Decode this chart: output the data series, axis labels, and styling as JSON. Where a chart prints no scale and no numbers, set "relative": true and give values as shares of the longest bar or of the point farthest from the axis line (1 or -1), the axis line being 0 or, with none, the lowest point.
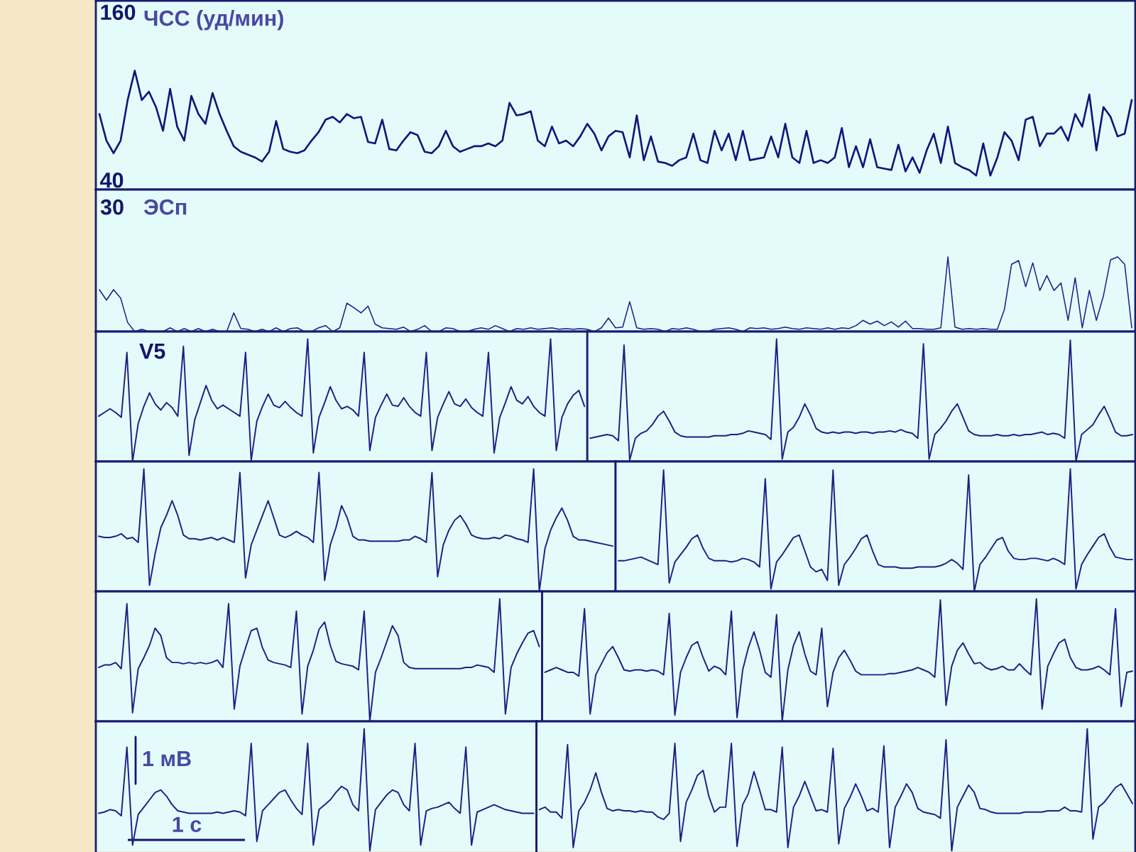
{
  "chart_data": [
    {
      "type": "line",
      "title": "ЧСС (уд/мин)",
      "ylim": [
        33,
        168
      ],
      "yticks": [
        40,
        160
      ],
      "tick_labels": "y",
      "categories": [
        null,
        null,
        null,
        null,
        null,
        null,
        null,
        null,
        null,
        null,
        null,
        null,
        null,
        null,
        null,
        null,
        null,
        null,
        null,
        null,
        null,
        null,
        null,
        null,
        null,
        null,
        null,
        null,
        null,
        null,
        null,
        null,
        null,
        null,
        null,
        null,
        null,
        null,
        null,
        null,
        null,
        null,
        null,
        null,
        null,
        null,
        null,
        null,
        null,
        null,
        null,
        null,
        null,
        null,
        null,
        null,
        null,
        null,
        null,
        null,
        null,
        null,
        null,
        null,
        null,
        null,
        null,
        null,
        null,
        null,
        null,
        null,
        null,
        null,
        null,
        null,
        null,
        null,
        null,
        null,
        null,
        null,
        null,
        null,
        null,
        null,
        null,
        null,
        null,
        null,
        null,
        null,
        null,
        null,
        null,
        null,
        null,
        null,
        null,
        null,
        null,
        null,
        null,
        null,
        null,
        null,
        null,
        null,
        null,
        null,
        null,
        null,
        null,
        null,
        null,
        null,
        null,
        null,
        null,
        null,
        null,
        null,
        null,
        null,
        null,
        null,
        null,
        null,
        null,
        null,
        null,
        null,
        null,
        null,
        null,
        null,
        null,
        null,
        null,
        null,
        null,
        null,
        null,
        null,
        null,
        null,
        null
      ],
      "series": [
        {
          "color": "#14147a",
          "values": [
            87,
            68,
            59,
            68,
            97,
            118,
            97,
            103,
            92,
            75,
            105,
            78,
            68,
            100,
            87,
            80,
            102,
            87,
            75,
            64,
            60,
            58,
            56,
            53,
            60,
            82,
            62,
            60,
            59,
            61,
            68,
            74,
            83,
            85,
            81,
            87,
            84,
            85,
            67,
            66,
            83,
            62,
            61,
            68,
            74,
            72,
            60,
            59,
            64,
            75,
            64,
            60,
            62,
            64,
            64,
            66,
            64,
            68,
            95,
            86,
            87,
            89,
            68,
            64,
            78,
            66,
            68,
            64,
            71,
            80,
            73,
            61,
            71,
            75,
            74,
            56,
            86,
            54,
            71,
            53,
            52,
            50,
            54,
            56,
            73,
            54,
            52,
            75,
            61,
            73,
            54,
            75,
            54,
            55,
            56,
            71,
            56,
            80,
            56,
            52,
            75,
            52,
            54,
            52,
            56,
            77,
            49,
            64,
            49,
            69,
            49,
            48,
            47,
            65,
            46,
            56,
            45,
            61,
            73,
            52,
            78,
            52,
            49,
            47,
            43,
            66,
            43,
            56,
            74,
            68,
            54,
            83,
            85,
            64,
            73,
            73,
            78,
            68,
            87,
            78,
            101,
            61,
            92,
            85,
            71,
            73,
            97
          ]
        }
      ]
    },
    {
      "type": "line",
      "title": "ЭСп",
      "annotations": [
        "30"
      ],
      "relative": true,
      "tick_labels": false,
      "categories": [
        null,
        null,
        null,
        null,
        null,
        null,
        null,
        null,
        null,
        null,
        null,
        null,
        null,
        null,
        null,
        null,
        null,
        null,
        null,
        null,
        null,
        null,
        null,
        null,
        null,
        null,
        null,
        null,
        null,
        null,
        null,
        null,
        null,
        null,
        null,
        null,
        null,
        null,
        null,
        null,
        null,
        null,
        null,
        null,
        null,
        null,
        null,
        null,
        null,
        null,
        null,
        null,
        null,
        null,
        null,
        null,
        null,
        null,
        null,
        null,
        null,
        null,
        null,
        null,
        null,
        null,
        null,
        null,
        null,
        null,
        null,
        null,
        null,
        null,
        null,
        null,
        null,
        null,
        null,
        null,
        null,
        null,
        null,
        null,
        null,
        null,
        null,
        null,
        null,
        null,
        null,
        null,
        null,
        null,
        null,
        null,
        null,
        null,
        null,
        null,
        null,
        null,
        null,
        null,
        null,
        null,
        null,
        null,
        null,
        null,
        null,
        null,
        null,
        null,
        null,
        null,
        null,
        null,
        null,
        null,
        null,
        null,
        null,
        null,
        null,
        null,
        null,
        null,
        null,
        null,
        null,
        null,
        null,
        null,
        null,
        null,
        null,
        null,
        null,
        null,
        null,
        null,
        null,
        null,
        null,
        null,
        null
      ],
      "series": [
        {
          "color": "#1e1e86",
          "values": [
            0.56,
            0.42,
            0.56,
            0.45,
            0.12,
            0,
            0.03,
            0,
            0,
            0,
            0.05,
            0,
            0.04,
            0,
            0.04,
            0,
            0.03,
            0,
            0,
            0.25,
            0.04,
            0.03,
            0,
            0.03,
            0,
            0.05,
            0,
            0.04,
            0.05,
            0,
            0,
            0.05,
            0.08,
            0,
            0.05,
            0.38,
            0.32,
            0.25,
            0.34,
            0.1,
            0.05,
            0.04,
            0.03,
            0.06,
            0,
            0.03,
            0.08,
            0,
            0,
            0.05,
            0.04,
            0,
            0,
            0.03,
            0.05,
            0.03,
            0.08,
            0.04,
            0,
            0.04,
            0.03,
            0.05,
            0.03,
            0.04,
            0.05,
            0.03,
            0.04,
            0.03,
            0.04,
            0.03,
            0,
            0.05,
            0.18,
            0.05,
            0.06,
            0.4,
            0.05,
            0.03,
            0.04,
            0.03,
            0,
            0.04,
            0.03,
            0.05,
            0.03,
            0,
            0,
            0.03,
            0.04,
            0.05,
            0.03,
            0,
            0.05,
            0.04,
            0.05,
            0.03,
            0.04,
            0.06,
            0.04,
            0.03,
            0.05,
            0.04,
            0.03,
            0.05,
            0.03,
            0.05,
            0.04,
            0.08,
            0.15,
            0.1,
            0.14,
            0.08,
            0.13,
            0.06,
            0.14,
            0.04,
            0.04,
            0.03,
            0.03,
            0.05,
            1.0,
            0.06,
            0.03,
            0.04,
            0.03,
            0.04,
            0.03,
            0.03,
            0.3,
            0.9,
            0.95,
            0.6,
            0.92,
            0.55,
            0.75,
            0.55,
            0.65,
            0.15,
            0.72,
            0.05,
            0.55,
            0.15,
            0.48,
            0.96,
            1.0,
            0.9,
            0.05
          ]
        }
      ]
    },
    {
      "type": "line",
      "title": "V5",
      "relative": true,
      "tick_labels": false,
      "categories": [
        null,
        null,
        null,
        null,
        null,
        null,
        null,
        null,
        null,
        null,
        null,
        null,
        null,
        null,
        null,
        null,
        null,
        null,
        null,
        null,
        null,
        null,
        null,
        null,
        null,
        null,
        null,
        null,
        null,
        null,
        null,
        null,
        null,
        null,
        null,
        null,
        null,
        null,
        null,
        null,
        null,
        null,
        null,
        null,
        null,
        null,
        null,
        null,
        null,
        null,
        null,
        null,
        null,
        null,
        null,
        null,
        null,
        null,
        null,
        null,
        null,
        null,
        null,
        null,
        null,
        null,
        null,
        null,
        null,
        null,
        null,
        null,
        null,
        null,
        null,
        null,
        null,
        null,
        null,
        null,
        null,
        null,
        null,
        null,
        null,
        null,
        null
      ],
      "series": [
        {
          "color": "#1e1e86",
          "values": [
            0.37,
            0.4,
            0.43,
            0.4,
            0.36,
            0.89,
            0.0,
            0.31,
            0.45,
            0.56,
            0.47,
            0.42,
            0.48,
            0.44,
            0.37,
            0.94,
            0.05,
            0.34,
            0.48,
            0.62,
            0.5,
            0.43,
            0.46,
            0.43,
            0.4,
            0.37,
            0.89,
            0.01,
            0.33,
            0.45,
            0.55,
            0.46,
            0.44,
            0.49,
            0.44,
            0.4,
            0.37,
            1.0,
            0.07,
            0.36,
            0.48,
            0.61,
            0.5,
            0.43,
            0.45,
            0.42,
            0.37,
            0.89,
            0.09,
            0.36,
            0.46,
            0.55,
            0.46,
            0.45,
            0.52,
            0.45,
            0.4,
            0.37,
            0.89,
            0.09,
            0.36,
            0.47,
            0.57,
            0.47,
            0.45,
            0.51,
            0.44,
            0.4,
            0.37,
            0.89,
            0.07,
            0.36,
            0.48,
            0.61,
            0.5,
            0.47,
            0.53,
            0.45,
            0.4,
            0.37,
            1.0,
            0.09,
            0.36,
            0.47,
            0.54,
            0.58,
            0.45
          ]
        }
      ]
    },
    {
      "type": "line",
      "relative": true,
      "tick_labels": false,
      "categories": [
        null,
        null,
        null,
        null,
        null,
        null,
        null,
        null,
        null,
        null,
        null,
        null,
        null,
        null,
        null,
        null,
        null,
        null,
        null,
        null,
        null,
        null,
        null,
        null,
        null,
        null,
        null,
        null,
        null,
        null,
        null,
        null,
        null,
        null,
        null,
        null,
        null,
        null,
        null,
        null,
        null,
        null,
        null,
        null,
        null,
        null,
        null,
        null,
        null,
        null,
        null,
        null,
        null,
        null,
        null,
        null,
        null,
        null,
        null,
        null,
        null,
        null,
        null,
        null,
        null,
        null,
        null,
        null,
        null,
        null,
        null,
        null,
        null,
        null,
        null,
        null,
        null,
        null,
        null,
        null,
        null,
        null,
        null,
        null,
        null,
        null,
        null,
        null,
        null,
        null,
        null,
        null,
        null,
        null,
        null,
        null,
        null
      ],
      "series": [
        {
          "color": "#1e1e86",
          "values": [
            0.19,
            0.2,
            0.21,
            0.22,
            0.21,
            0.17,
            0.95,
            0.01,
            0.19,
            0.23,
            0.25,
            0.3,
            0.37,
            0.41,
            0.33,
            0.24,
            0.21,
            0.2,
            0.2,
            0.2,
            0.2,
            0.2,
            0.21,
            0.21,
            0.21,
            0.22,
            0.22,
            0.23,
            0.25,
            0.24,
            0.23,
            0.22,
            0.18,
            1.0,
            0.02,
            0.24,
            0.28,
            0.36,
            0.47,
            0.38,
            0.27,
            0.24,
            0.23,
            0.24,
            0.23,
            0.24,
            0.24,
            0.23,
            0.24,
            0.24,
            0.23,
            0.24,
            0.24,
            0.25,
            0.24,
            0.26,
            0.24,
            0.23,
            0.19,
            0.96,
            0.02,
            0.22,
            0.27,
            0.33,
            0.41,
            0.47,
            0.36,
            0.25,
            0.22,
            0.21,
            0.21,
            0.21,
            0.22,
            0.21,
            0.21,
            0.22,
            0.21,
            0.22,
            0.22,
            0.23,
            0.24,
            0.22,
            0.23,
            0.22,
            0.19,
            0.99,
            0.0,
            0.22,
            0.26,
            0.3,
            0.38,
            0.45,
            0.35,
            0.24,
            0.21,
            0.21,
            0.22
          ]
        }
      ]
    },
    {
      "type": "line",
      "relative": true,
      "tick_labels": false,
      "categories": [
        null,
        null,
        null,
        null,
        null,
        null,
        null,
        null,
        null,
        null,
        null,
        null,
        null,
        null,
        null,
        null,
        null,
        null,
        null,
        null,
        null,
        null,
        null,
        null,
        null,
        null,
        null,
        null,
        null,
        null,
        null,
        null,
        null,
        null,
        null,
        null,
        null,
        null,
        null,
        null,
        null,
        null,
        null,
        null,
        null,
        null,
        null,
        null,
        null,
        null,
        null,
        null,
        null,
        null,
        null,
        null,
        null,
        null,
        null,
        null,
        null,
        null,
        null,
        null,
        null,
        null,
        null,
        null,
        null,
        null,
        null,
        null,
        null,
        null,
        null,
        null,
        null,
        null,
        null,
        null,
        null,
        null,
        null,
        null,
        null,
        null,
        null,
        null,
        null,
        null,
        null,
        null
      ],
      "series": [
        {
          "color": "#1e1e86",
          "values": [
            0.45,
            0.44,
            0.44,
            0.45,
            0.47,
            0.43,
            0.44,
            0.4,
            1.0,
            0.05,
            0.31,
            0.52,
            0.62,
            0.74,
            0.62,
            0.46,
            0.43,
            0.43,
            0.42,
            0.43,
            0.44,
            0.42,
            0.44,
            0.42,
            0.4,
            0.97,
            0.11,
            0.38,
            0.5,
            0.62,
            0.74,
            0.6,
            0.46,
            0.44,
            0.46,
            0.49,
            0.46,
            0.44,
            0.4,
            0.97,
            0.09,
            0.38,
            0.52,
            0.7,
            0.6,
            0.45,
            0.42,
            0.42,
            0.41,
            0.41,
            0.41,
            0.41,
            0.41,
            0.41,
            0.42,
            0.42,
            0.45,
            0.43,
            0.4,
            0.97,
            0.12,
            0.38,
            0.5,
            0.58,
            0.62,
            0.55,
            0.46,
            0.44,
            0.43,
            0.43,
            0.44,
            0.43,
            0.46,
            0.45,
            0.43,
            0.42,
            0.4,
            1.0,
            0.0,
            0.35,
            0.5,
            0.6,
            0.68,
            0.58,
            0.45,
            0.42,
            0.42,
            0.41,
            0.4,
            0.39,
            0.38,
            0.37
          ]
        }
      ]
    },
    {
      "type": "line",
      "relative": true,
      "tick_labels": false,
      "categories": [
        null,
        null,
        null,
        null,
        null,
        null,
        null,
        null,
        null,
        null,
        null,
        null,
        null,
        null,
        null,
        null,
        null,
        null,
        null,
        null,
        null,
        null,
        null,
        null,
        null,
        null,
        null,
        null,
        null,
        null,
        null,
        null,
        null,
        null,
        null,
        null,
        null,
        null,
        null,
        null,
        null,
        null,
        null,
        null,
        null,
        null,
        null,
        null,
        null,
        null,
        null,
        null,
        null,
        null,
        null,
        null,
        null,
        null,
        null,
        null,
        null,
        null,
        null,
        null,
        null,
        null,
        null,
        null,
        null,
        null,
        null,
        null,
        null,
        null,
        null,
        null,
        null,
        null,
        null,
        null,
        null,
        null,
        null,
        null,
        null,
        null,
        null,
        null,
        null,
        null,
        null,
        null
      ],
      "series": [
        {
          "color": "#1e1e86",
          "values": [
            0.25,
            0.25,
            0.26,
            0.27,
            0.28,
            0.26,
            0.24,
            0.22,
            0.99,
            0.07,
            0.24,
            0.3,
            0.36,
            0.43,
            0.46,
            0.35,
            0.27,
            0.25,
            0.25,
            0.25,
            0.24,
            0.25,
            0.27,
            0.26,
            0.24,
            0.2,
            0.92,
            0.02,
            0.24,
            0.3,
            0.37,
            0.44,
            0.46,
            0.33,
            0.2,
            0.16,
            0.18,
            0.09,
            0.99,
            0.05,
            0.22,
            0.28,
            0.35,
            0.43,
            0.46,
            0.33,
            0.22,
            0.2,
            0.2,
            0.2,
            0.19,
            0.19,
            0.19,
            0.2,
            0.2,
            0.2,
            0.2,
            0.21,
            0.23,
            0.26,
            0.23,
            0.18,
            0.95,
            0.0,
            0.22,
            0.28,
            0.35,
            0.42,
            0.44,
            0.33,
            0.27,
            0.26,
            0.26,
            0.27,
            0.27,
            0.26,
            0.25,
            0.27,
            0.25,
            0.22,
            1.0,
            0.02,
            0.22,
            0.3,
            0.37,
            0.44,
            0.47,
            0.36,
            0.28,
            0.27,
            0.26,
            0.26
          ]
        }
      ]
    },
    {
      "type": "line",
      "relative": true,
      "tick_labels": false,
      "categories": [
        null,
        null,
        null,
        null,
        null,
        null,
        null,
        null,
        null,
        null,
        null,
        null,
        null,
        null,
        null,
        null,
        null,
        null,
        null,
        null,
        null,
        null,
        null,
        null,
        null,
        null,
        null,
        null,
        null,
        null,
        null,
        null,
        null,
        null,
        null,
        null,
        null,
        null,
        null,
        null,
        null,
        null,
        null,
        null,
        null,
        null,
        null,
        null,
        null,
        null,
        null,
        null,
        null,
        null,
        null,
        null,
        null,
        null,
        null,
        null,
        null,
        null,
        null,
        null,
        null,
        null,
        null,
        null,
        null,
        null,
        null,
        null,
        null,
        null,
        null,
        null,
        null,
        null,
        null
      ],
      "series": [
        {
          "color": "#1e1e86",
          "values": [
            0.44,
            0.46,
            0.46,
            0.48,
            0.43,
            0.96,
            0.07,
            0.43,
            0.52,
            0.62,
            0.76,
            0.7,
            0.52,
            0.48,
            0.48,
            0.47,
            0.48,
            0.47,
            0.48,
            0.47,
            0.48,
            0.5,
            0.44,
            0.96,
            0.1,
            0.45,
            0.6,
            0.74,
            0.76,
            0.6,
            0.5,
            0.48,
            0.47,
            0.46,
            0.44,
            0.9,
            0.06,
            0.45,
            0.58,
            0.75,
            0.81,
            0.62,
            0.49,
            0.47,
            0.46,
            0.45,
            0.42,
            0.9,
            0.0,
            0.4,
            0.52,
            0.65,
            0.78,
            0.7,
            0.48,
            0.44,
            0.43,
            0.43,
            0.43,
            0.43,
            0.43,
            0.43,
            0.43,
            0.43,
            0.43,
            0.44,
            0.44,
            0.46,
            0.45,
            0.44,
            0.4,
            1.0,
            0.06,
            0.44,
            0.55,
            0.64,
            0.72,
            0.74,
            0.61
          ]
        }
      ]
    },
    {
      "type": "line",
      "relative": true,
      "tick_labels": false,
      "categories": [
        null,
        null,
        null,
        null,
        null,
        null,
        null,
        null,
        null,
        null,
        null,
        null,
        null,
        null,
        null,
        null,
        null,
        null,
        null,
        null,
        null,
        null,
        null,
        null,
        null,
        null,
        null,
        null,
        null,
        null,
        null,
        null,
        null,
        null,
        null,
        null,
        null,
        null,
        null,
        null,
        null,
        null,
        null,
        null,
        null,
        null,
        null,
        null,
        null,
        null,
        null,
        null,
        null,
        null,
        null,
        null,
        null,
        null,
        null,
        null,
        null,
        null,
        null,
        null,
        null,
        null,
        null,
        null,
        null,
        null,
        null,
        null,
        null,
        null,
        null,
        null,
        null,
        null,
        null,
        null,
        null,
        null,
        null,
        null,
        null,
        null,
        null,
        null,
        null,
        null,
        null,
        null,
        null,
        null,
        null,
        null,
        null,
        null,
        null,
        null,
        null,
        null,
        null,
        null,
        null
      ],
      "series": [
        {
          "color": "#1e1e86",
          "values": [
            0.4,
            0.42,
            0.44,
            0.42,
            0.4,
            0.4,
            0.37,
            0.92,
            0.06,
            0.38,
            0.47,
            0.56,
            0.61,
            0.52,
            0.42,
            0.41,
            0.42,
            0.42,
            0.41,
            0.42,
            0.41,
            0.38,
            0.88,
            0.05,
            0.4,
            0.52,
            0.62,
            0.65,
            0.52,
            0.41,
            0.45,
            0.43,
            0.38,
            0.9,
            0.03,
            0.42,
            0.6,
            0.73,
            0.58,
            0.4,
            0.36,
            0.87,
            0.0,
            0.42,
            0.62,
            0.73,
            0.55,
            0.41,
            0.38,
            0.76,
            0.12,
            0.4,
            0.52,
            0.58,
            0.5,
            0.41,
            0.38,
            0.38,
            0.38,
            0.38,
            0.38,
            0.39,
            0.39,
            0.4,
            0.41,
            0.42,
            0.44,
            0.42,
            0.4,
            0.36,
            0.99,
            0.13,
            0.45,
            0.58,
            0.64,
            0.55,
            0.47,
            0.48,
            0.44,
            0.42,
            0.43,
            0.45,
            0.42,
            0.42,
            0.47,
            0.42,
            0.38,
            1.0,
            0.1,
            0.45,
            0.55,
            0.64,
            0.67,
            0.52,
            0.44,
            0.42,
            0.42,
            0.43,
            0.45,
            0.42,
            0.38,
            0.92,
            0.12,
            0.4,
            0.41
          ]
        }
      ]
    },
    {
      "type": "line",
      "relative": true,
      "tick_labels": false,
      "annotations": [
        "1 мВ",
        "1 с"
      ],
      "categories": [
        null,
        null,
        null,
        null,
        null,
        null,
        null,
        null,
        null,
        null,
        null,
        null,
        null,
        null,
        null,
        null,
        null,
        null,
        null,
        null,
        null,
        null,
        null,
        null,
        null,
        null,
        null,
        null,
        null,
        null,
        null,
        null,
        null,
        null,
        null,
        null,
        null,
        null,
        null,
        null,
        null,
        null,
        null,
        null,
        null,
        null,
        null,
        null,
        null,
        null,
        null,
        null,
        null,
        null,
        null,
        null,
        null,
        null,
        null,
        null,
        null,
        null,
        null,
        null,
        null,
        null,
        null,
        null,
        null,
        null,
        null,
        null,
        null,
        null,
        null,
        null,
        null,
        null
      ],
      "series": [
        {
          "color": "#1e1e86",
          "values": [
            0.31,
            0.32,
            0.34,
            0.33,
            0.29,
            0.85,
            0.05,
            0.3,
            0.36,
            0.42,
            0.48,
            0.5,
            0.45,
            0.38,
            0.33,
            0.32,
            0.31,
            0.31,
            0.31,
            0.31,
            0.31,
            0.32,
            0.31,
            0.32,
            0.33,
            0.32,
            0.29,
            0.88,
            0.08,
            0.33,
            0.38,
            0.43,
            0.48,
            0.5,
            0.42,
            0.35,
            0.3,
            0.88,
            0.05,
            0.34,
            0.38,
            0.42,
            0.48,
            0.53,
            0.5,
            0.38,
            0.33,
            1.0,
            0.0,
            0.34,
            0.4,
            0.46,
            0.5,
            0.48,
            0.38,
            0.33,
            0.88,
            0.05,
            0.33,
            0.35,
            0.36,
            0.38,
            0.4,
            0.35,
            0.31,
            0.85,
            0.05,
            0.32,
            0.34,
            0.36,
            0.38,
            0.36,
            0.34,
            0.33,
            0.32,
            0.31,
            0.31,
            0.31
          ]
        }
      ]
    },
    {
      "type": "line",
      "relative": true,
      "tick_labels": false,
      "categories": [
        null,
        null,
        null,
        null,
        null,
        null,
        null,
        null,
        null,
        null,
        null,
        null,
        null,
        null,
        null,
        null,
        null,
        null,
        null,
        null,
        null,
        null,
        null,
        null,
        null,
        null,
        null,
        null,
        null,
        null,
        null,
        null,
        null,
        null,
        null,
        null,
        null,
        null,
        null,
        null,
        null,
        null,
        null,
        null,
        null,
        null,
        null,
        null,
        null,
        null,
        null,
        null,
        null,
        null,
        null,
        null,
        null,
        null,
        null,
        null,
        null,
        null,
        null,
        null,
        null,
        null,
        null,
        null,
        null,
        null,
        null,
        null,
        null,
        null,
        null,
        null,
        null,
        null,
        null,
        null,
        null,
        null,
        null,
        null,
        null,
        null,
        null,
        null,
        null,
        null,
        null,
        null,
        null,
        null,
        null,
        null,
        null,
        null,
        null,
        null,
        null,
        null,
        null,
        null,
        null,
        null
      ],
      "series": [
        {
          "color": "#1e1e86",
          "values": [
            0.34,
            0.36,
            0.32,
            0.32,
            0.27,
            0.87,
            0.03,
            0.33,
            0.4,
            0.5,
            0.64,
            0.48,
            0.35,
            0.33,
            0.34,
            0.33,
            0.33,
            0.32,
            0.33,
            0.32,
            0.32,
            0.28,
            0.26,
            0.31,
            0.88,
            0.08,
            0.4,
            0.5,
            0.62,
            0.66,
            0.45,
            0.32,
            0.36,
            0.36,
            0.88,
            0.04,
            0.38,
            0.47,
            0.65,
            0.5,
            0.34,
            0.34,
            0.32,
            0.85,
            0.03,
            0.36,
            0.45,
            0.57,
            0.45,
            0.33,
            0.34,
            0.32,
            0.84,
            0.06,
            0.35,
            0.44,
            0.55,
            0.45,
            0.33,
            0.35,
            0.32,
            0.86,
            0.03,
            0.36,
            0.45,
            0.55,
            0.48,
            0.35,
            0.32,
            0.31,
            0.3,
            0.27,
            0.91,
            0.0,
            0.36,
            0.45,
            0.54,
            0.48,
            0.35,
            0.34,
            0.32,
            0.31,
            0.31,
            0.31,
            0.31,
            0.31,
            0.32,
            0.32,
            0.32,
            0.32,
            0.33,
            0.33,
            0.33,
            0.36,
            0.33,
            0.33,
            0.32,
            1.0,
            0.1,
            0.36,
            0.4,
            0.46,
            0.52,
            0.55,
            0.47,
            0.39
          ]
        }
      ]
    }
  ]
}
